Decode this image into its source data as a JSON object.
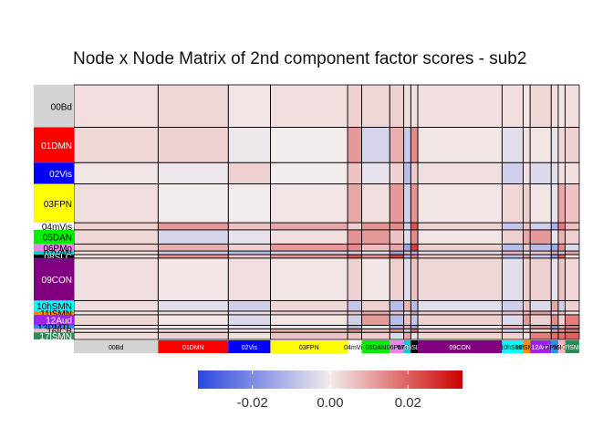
{
  "chart_data": {
    "type": "heatmap",
    "title": "Node x Node Matrix of 2nd component factor scores - sub2",
    "xlabel": "",
    "ylabel": "",
    "networks": [
      {
        "name": "00Bd",
        "size": 12,
        "color": "#d3d3d3"
      },
      {
        "name": "01DMN",
        "size": 10,
        "color": "#ff0000"
      },
      {
        "name": "02Vis",
        "size": 6,
        "color": "#0000ff"
      },
      {
        "name": "03FPN",
        "size": 11,
        "color": "#ffff00"
      },
      {
        "name": "04mVis",
        "size": 2,
        "color": "#ffffff"
      },
      {
        "name": "05DAN",
        "size": 4,
        "color": "#00ee00"
      },
      {
        "name": "06PMo",
        "size": 2,
        "color": "#ee82ee"
      },
      {
        "name": "07VAN",
        "size": 1,
        "color": "#00ced1"
      },
      {
        "name": "08SLC",
        "size": 1,
        "color": "#000000"
      },
      {
        "name": "09CON",
        "size": 12,
        "color": "#800080"
      },
      {
        "name": "10hSMN",
        "size": 3,
        "color": "#00ffff"
      },
      {
        "name": "11lSMN",
        "size": 1,
        "color": "#ff8c00"
      },
      {
        "name": "12Aud",
        "size": 3,
        "color": "#a020f0"
      },
      {
        "name": "13PMTL",
        "size": 1,
        "color": "#1e90ff"
      },
      {
        "name": "16ICB",
        "size": 1,
        "color": "#ffb6c1"
      },
      {
        "name": "17lSMN",
        "size": 2,
        "color": "#2e8b57"
      }
    ],
    "block_values": [
      [
        0.002,
        0.003,
        0.001,
        0.002,
        0.004,
        0.003,
        0.004,
        0.002,
        0.002,
        0.002,
        0.002,
        0.001,
        0.003,
        0.002,
        0.001,
        0.002
      ],
      [
        0.003,
        0.004,
        -0.001,
        0.0,
        0.012,
        -0.005,
        0.009,
        -0.007,
        0.014,
        0.001,
        -0.003,
        0.002,
        0.001,
        -0.002,
        0.003,
        0.004
      ],
      [
        0.001,
        -0.001,
        0.004,
        0.0,
        0.006,
        -0.002,
        0.004,
        -0.01,
        0.005,
        0.002,
        -0.006,
        0.002,
        -0.004,
        -0.003,
        0.002,
        0.002
      ],
      [
        0.002,
        0.0,
        0.0,
        0.001,
        0.01,
        0.002,
        0.012,
        -0.006,
        0.013,
        0.001,
        0.003,
        0.004,
        0.001,
        -0.002,
        0.01,
        0.006
      ],
      [
        0.004,
        0.012,
        0.006,
        0.01,
        0.004,
        0.013,
        0.014,
        -0.006,
        0.022,
        0.004,
        -0.008,
        0.006,
        -0.006,
        -0.012,
        0.016,
        0.006
      ],
      [
        0.003,
        -0.005,
        -0.002,
        0.002,
        0.013,
        0.012,
        0.006,
        -0.003,
        0.014,
        0.001,
        0.004,
        0.01,
        0.012,
        -0.002,
        0.008,
        0.004
      ],
      [
        0.004,
        0.009,
        0.004,
        0.012,
        0.014,
        0.006,
        0.01,
        -0.015,
        0.025,
        0.004,
        -0.01,
        0.006,
        -0.01,
        -0.014,
        0.014,
        -0.004
      ],
      [
        0.002,
        -0.007,
        -0.01,
        -0.006,
        -0.006,
        -0.003,
        -0.015,
        0.008,
        -0.012,
        -0.003,
        0.008,
        -0.004,
        0.006,
        0.01,
        -0.008,
        0.01
      ],
      [
        0.002,
        0.014,
        0.005,
        0.013,
        0.022,
        0.014,
        0.025,
        -0.012,
        0.016,
        0.006,
        -0.01,
        0.012,
        -0.008,
        -0.016,
        0.02,
        0.002
      ],
      [
        0.002,
        0.001,
        0.002,
        0.001,
        0.004,
        0.001,
        0.004,
        -0.003,
        0.006,
        0.003,
        -0.003,
        0.004,
        0.004,
        -0.002,
        0.006,
        0.003
      ],
      [
        0.002,
        -0.003,
        -0.006,
        0.003,
        -0.008,
        0.004,
        -0.01,
        0.008,
        -0.01,
        -0.003,
        -0.006,
        0.006,
        -0.004,
        0.01,
        -0.006,
        0.004
      ],
      [
        0.001,
        0.002,
        0.002,
        0.004,
        0.006,
        0.01,
        0.006,
        -0.004,
        0.012,
        0.004,
        0.006,
        0.008,
        0.012,
        -0.004,
        0.006,
        0.002
      ],
      [
        0.003,
        0.001,
        -0.004,
        0.001,
        -0.006,
        0.012,
        -0.01,
        0.006,
        -0.008,
        0.004,
        -0.004,
        0.012,
        0.004,
        0.014,
        0.004,
        0.016
      ],
      [
        0.002,
        -0.002,
        -0.003,
        -0.002,
        -0.012,
        -0.002,
        -0.014,
        0.01,
        -0.016,
        -0.002,
        0.01,
        -0.004,
        0.014,
        -0.02,
        0.012,
        0.018
      ],
      [
        0.001,
        0.003,
        0.002,
        0.01,
        0.016,
        0.008,
        0.014,
        -0.008,
        0.02,
        0.006,
        -0.006,
        0.006,
        0.004,
        0.012,
        0.014,
        0.018
      ],
      [
        0.002,
        0.004,
        0.002,
        0.006,
        0.006,
        0.004,
        -0.004,
        0.01,
        0.002,
        0.003,
        0.004,
        0.002,
        0.016,
        0.018,
        0.018,
        0.02
      ]
    ],
    "color_scale": {
      "low": "#2b48de",
      "mid": "#f3ecec",
      "high": "#cc0000",
      "limits": [
        -0.034,
        0.034
      ],
      "ticks": [
        -0.02,
        0.0,
        0.02
      ],
      "tick_labels": [
        "-0.02",
        "0.00",
        "0.02"
      ]
    },
    "legend_position": "bottom"
  }
}
